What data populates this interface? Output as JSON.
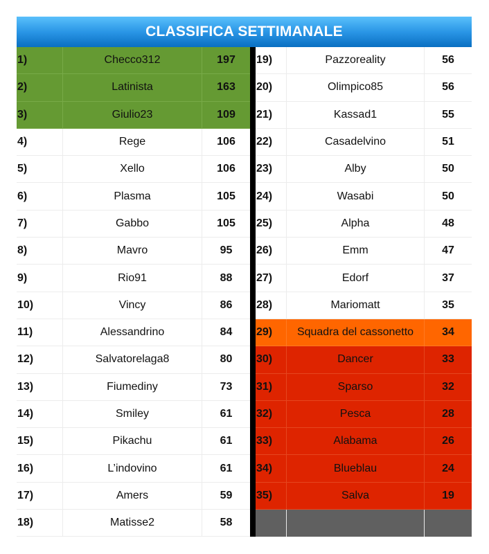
{
  "title": "CLASSIFICA SETTIMANALE",
  "colors": {
    "header_top": "#5ac0fb",
    "header_bottom": "#0a6fc2",
    "podium": "#659a33",
    "warning": "#ff6600",
    "relegation": "#de2400",
    "empty": "#606060",
    "divider": "#000000"
  },
  "left": [
    {
      "rank": "1)",
      "name": "Checco312",
      "score": "197",
      "zone": "green"
    },
    {
      "rank": "2)",
      "name": "Latinista",
      "score": "163",
      "zone": "green"
    },
    {
      "rank": "3)",
      "name": "Giulio23",
      "score": "109",
      "zone": "green"
    },
    {
      "rank": "4)",
      "name": "Rege",
      "score": "106",
      "zone": ""
    },
    {
      "rank": "5)",
      "name": "Xello",
      "score": "106",
      "zone": ""
    },
    {
      "rank": "6)",
      "name": "Plasma",
      "score": "105",
      "zone": ""
    },
    {
      "rank": "7)",
      "name": "Gabbo",
      "score": "105",
      "zone": ""
    },
    {
      "rank": "8)",
      "name": "Mavro",
      "score": "95",
      "zone": ""
    },
    {
      "rank": "9)",
      "name": "Rio91",
      "score": "88",
      "zone": ""
    },
    {
      "rank": "10)",
      "name": "Vincy",
      "score": "86",
      "zone": ""
    },
    {
      "rank": "11)",
      "name": "Alessandrino",
      "score": "84",
      "zone": ""
    },
    {
      "rank": "12)",
      "name": "Salvatorelaga8",
      "score": "80",
      "zone": ""
    },
    {
      "rank": "13)",
      "name": "Fiumediny",
      "score": "73",
      "zone": ""
    },
    {
      "rank": "14)",
      "name": "Smiley",
      "score": "61",
      "zone": ""
    },
    {
      "rank": "15)",
      "name": "Pikachu",
      "score": "61",
      "zone": ""
    },
    {
      "rank": "16)",
      "name": "L’indovino",
      "score": "61",
      "zone": ""
    },
    {
      "rank": "17)",
      "name": "Amers",
      "score": "59",
      "zone": ""
    },
    {
      "rank": "18)",
      "name": "Matisse2",
      "score": "58",
      "zone": ""
    }
  ],
  "right": [
    {
      "rank": "19)",
      "name": "Pazzoreality",
      "score": "56",
      "zone": ""
    },
    {
      "rank": "20)",
      "name": "Olimpico85",
      "score": "56",
      "zone": ""
    },
    {
      "rank": "21)",
      "name": "Kassad1",
      "score": "55",
      "zone": ""
    },
    {
      "rank": "22)",
      "name": "Casadelvino",
      "score": "51",
      "zone": ""
    },
    {
      "rank": "23)",
      "name": "Alby",
      "score": "50",
      "zone": ""
    },
    {
      "rank": "24)",
      "name": "Wasabi",
      "score": "50",
      "zone": ""
    },
    {
      "rank": "25)",
      "name": "Alpha",
      "score": "48",
      "zone": ""
    },
    {
      "rank": "26)",
      "name": "Emm",
      "score": "47",
      "zone": ""
    },
    {
      "rank": "27)",
      "name": "Edorf",
      "score": "37",
      "zone": ""
    },
    {
      "rank": "28)",
      "name": "Mariomatt",
      "score": "35",
      "zone": ""
    },
    {
      "rank": "29)",
      "name": "Squadra del cassonetto",
      "score": "34",
      "zone": "orange"
    },
    {
      "rank": "30)",
      "name": "Dancer",
      "score": "33",
      "zone": "red"
    },
    {
      "rank": "31)",
      "name": "Sparso",
      "score": "32",
      "zone": "red"
    },
    {
      "rank": "32)",
      "name": "Pesca",
      "score": "28",
      "zone": "red"
    },
    {
      "rank": "33)",
      "name": "Alabama",
      "score": "26",
      "zone": "red"
    },
    {
      "rank": "34)",
      "name": "Blueblau",
      "score": "24",
      "zone": "red"
    },
    {
      "rank": "35)",
      "name": "Salva",
      "score": "19",
      "zone": "red"
    },
    {
      "rank": "",
      "name": "",
      "score": "",
      "zone": "empty"
    }
  ]
}
